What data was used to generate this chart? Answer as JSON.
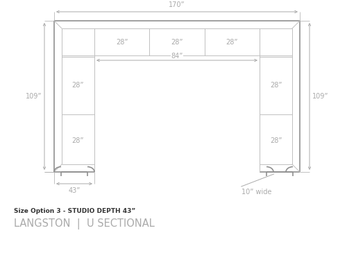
{
  "bg_color": "#ffffff",
  "line_color": "#c0c0c0",
  "outer_line": "#909090",
  "text_color": "#aaaaaa",
  "title_color": "#333333",
  "subtitle_color": "#aaaaaa",
  "title_text": "Size Option 3 - STUDIO DEPTH 43”",
  "subtitle_text": "LANGSTON  |  U SECTIONAL",
  "dim_170": "170”",
  "dim_109_left": "109”",
  "dim_109_right": "109”",
  "dim_43": "43”",
  "dim_84": "84”",
  "dim_28_top1": "28”",
  "dim_28_top2": "28”",
  "dim_28_top3": "28”",
  "dim_28_left1": "28”",
  "dim_28_left2": "28”",
  "dim_28_right1": "28”",
  "dim_28_right2": "28”",
  "dim_10": "10” wide",
  "figsize": [
    5.0,
    3.75
  ],
  "dpi": 100
}
